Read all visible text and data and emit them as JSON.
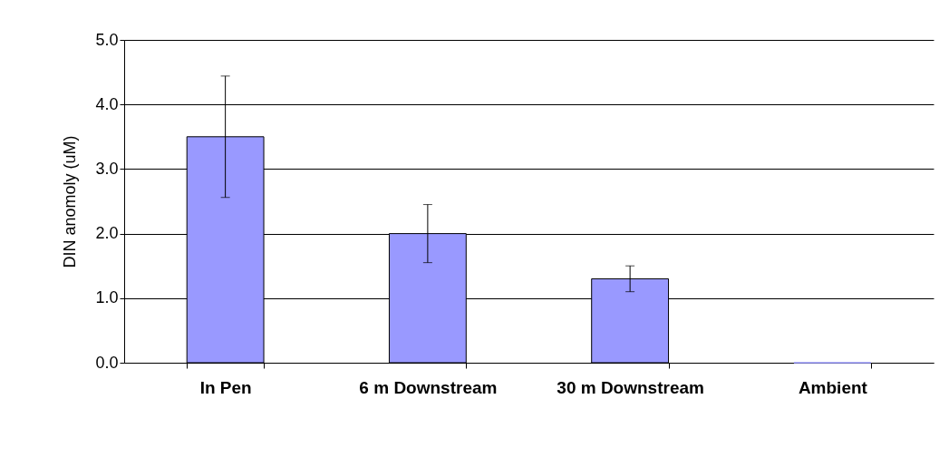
{
  "chart_data": {
    "type": "bar",
    "ylabel": "DIN anomoly (uM)",
    "categories": [
      "In Pen",
      "6 m Downstream",
      "30 m Downstream",
      "Ambient"
    ],
    "values": [
      3.5,
      2.0,
      1.3,
      0
    ],
    "errors": [
      0.94,
      0.45,
      0.2,
      null
    ],
    "color": "#9999ff",
    "ylim": [
      0,
      5
    ],
    "yticks": [
      {
        "value": 0,
        "label": "0.0"
      },
      {
        "value": 1,
        "label": "1.0"
      },
      {
        "value": 2,
        "label": "2.0"
      },
      {
        "value": 3,
        "label": "3.0"
      },
      {
        "value": 4,
        "label": "4.0"
      },
      {
        "value": 5,
        "label": "5.0"
      }
    ],
    "grid": true
  }
}
